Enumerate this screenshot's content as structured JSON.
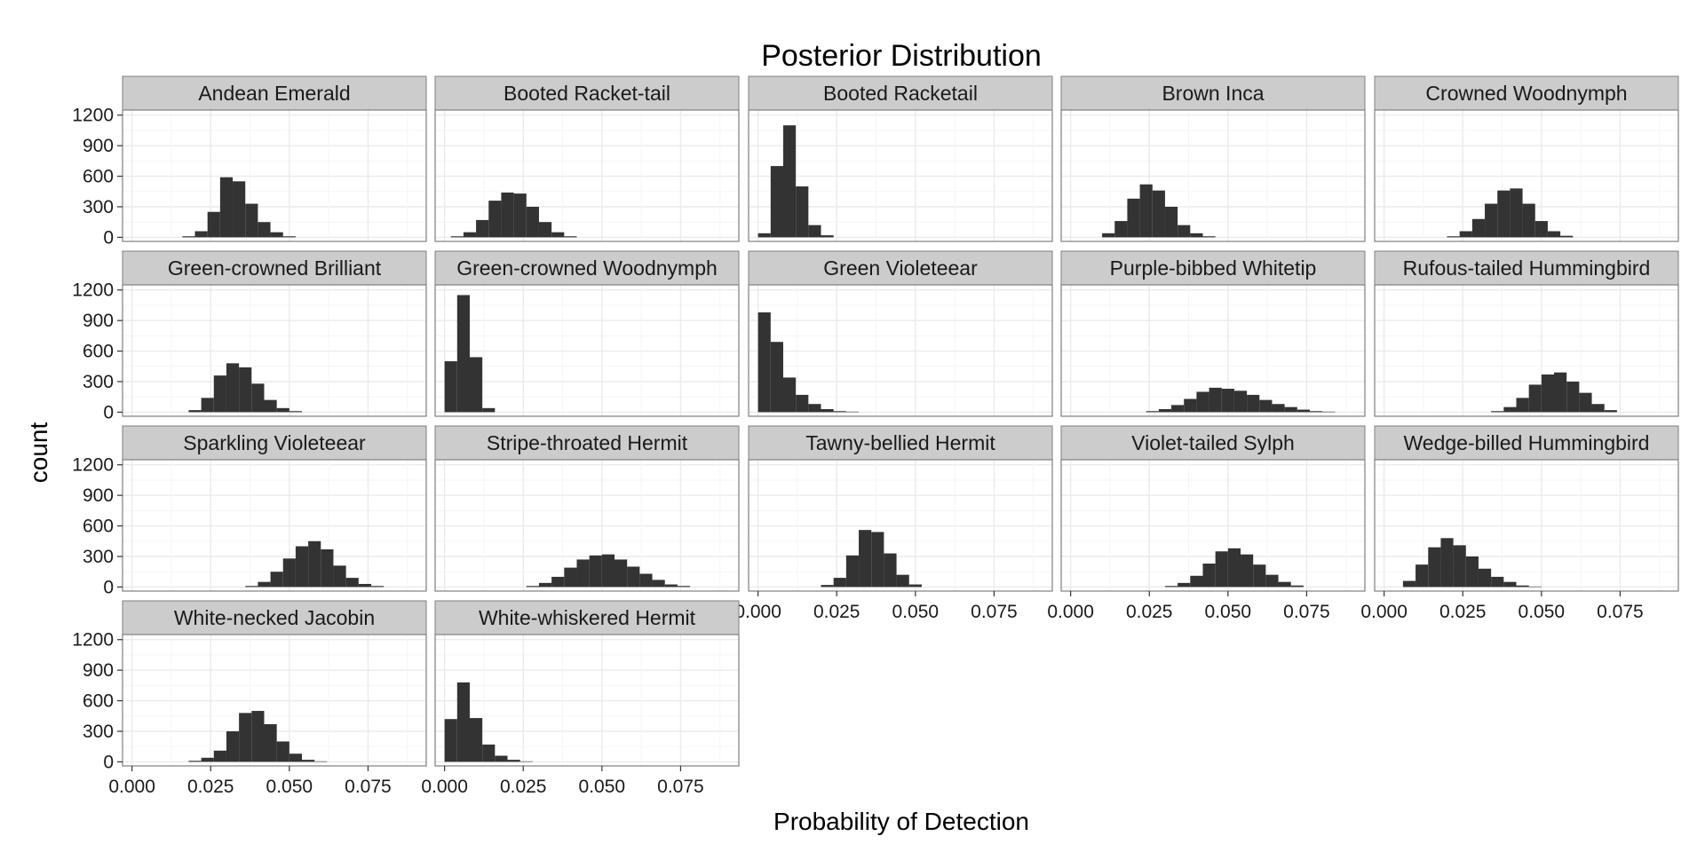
{
  "chart_data": {
    "type": "histogram",
    "title": "Posterior Distribution",
    "xlabel": "Probability of Detection",
    "ylabel": "count",
    "x_ticks": [
      "0.000",
      "0.025",
      "0.050",
      "0.075"
    ],
    "y_ticks": [
      "0",
      "300",
      "600",
      "900",
      "1200"
    ],
    "xlim": [
      -0.003,
      0.0935
    ],
    "ylim": [
      -40,
      1250
    ],
    "bin_width": 0.004,
    "grid": true,
    "colors": {
      "bar": "#333333",
      "strip": "#cccccc",
      "panel_border": "#7f7f7f",
      "grid": "#ebebeb"
    },
    "panels": [
      {
        "name": "Andean Emerald",
        "bins": [
          {
            "x": 0.016,
            "y": 10
          },
          {
            "x": 0.02,
            "y": 60
          },
          {
            "x": 0.024,
            "y": 250
          },
          {
            "x": 0.028,
            "y": 590
          },
          {
            "x": 0.032,
            "y": 550
          },
          {
            "x": 0.036,
            "y": 330
          },
          {
            "x": 0.04,
            "y": 150
          },
          {
            "x": 0.044,
            "y": 50
          },
          {
            "x": 0.048,
            "y": 10
          }
        ]
      },
      {
        "name": "Booted Racket-tail",
        "bins": [
          {
            "x": 0.002,
            "y": 10
          },
          {
            "x": 0.006,
            "y": 50
          },
          {
            "x": 0.01,
            "y": 170
          },
          {
            "x": 0.014,
            "y": 360
          },
          {
            "x": 0.018,
            "y": 440
          },
          {
            "x": 0.022,
            "y": 430
          },
          {
            "x": 0.026,
            "y": 300
          },
          {
            "x": 0.03,
            "y": 150
          },
          {
            "x": 0.034,
            "y": 50
          },
          {
            "x": 0.038,
            "y": 10
          }
        ]
      },
      {
        "name": "Booted Racketail",
        "bins": [
          {
            "x": 0.0,
            "y": 40
          },
          {
            "x": 0.004,
            "y": 700
          },
          {
            "x": 0.008,
            "y": 1100
          },
          {
            "x": 0.012,
            "y": 500
          },
          {
            "x": 0.016,
            "y": 120
          },
          {
            "x": 0.02,
            "y": 20
          }
        ]
      },
      {
        "name": "Brown Inca",
        "bins": [
          {
            "x": 0.01,
            "y": 40
          },
          {
            "x": 0.014,
            "y": 160
          },
          {
            "x": 0.018,
            "y": 380
          },
          {
            "x": 0.022,
            "y": 520
          },
          {
            "x": 0.026,
            "y": 460
          },
          {
            "x": 0.03,
            "y": 300
          },
          {
            "x": 0.034,
            "y": 120
          },
          {
            "x": 0.038,
            "y": 40
          },
          {
            "x": 0.042,
            "y": 10
          }
        ]
      },
      {
        "name": "Crowned Woodnymph",
        "bins": [
          {
            "x": 0.02,
            "y": 10
          },
          {
            "x": 0.024,
            "y": 60
          },
          {
            "x": 0.028,
            "y": 180
          },
          {
            "x": 0.032,
            "y": 330
          },
          {
            "x": 0.036,
            "y": 460
          },
          {
            "x": 0.04,
            "y": 480
          },
          {
            "x": 0.044,
            "y": 330
          },
          {
            "x": 0.048,
            "y": 160
          },
          {
            "x": 0.052,
            "y": 60
          },
          {
            "x": 0.056,
            "y": 15
          }
        ]
      },
      {
        "name": "Green-crowned Brilliant",
        "bins": [
          {
            "x": 0.018,
            "y": 20
          },
          {
            "x": 0.022,
            "y": 140
          },
          {
            "x": 0.026,
            "y": 360
          },
          {
            "x": 0.03,
            "y": 480
          },
          {
            "x": 0.034,
            "y": 440
          },
          {
            "x": 0.038,
            "y": 280
          },
          {
            "x": 0.042,
            "y": 120
          },
          {
            "x": 0.046,
            "y": 40
          },
          {
            "x": 0.05,
            "y": 10
          }
        ]
      },
      {
        "name": "Green-crowned Woodnymph",
        "bins": [
          {
            "x": 0.0,
            "y": 500
          },
          {
            "x": 0.004,
            "y": 1150
          },
          {
            "x": 0.008,
            "y": 540
          },
          {
            "x": 0.012,
            "y": 40
          }
        ]
      },
      {
        "name": "Green Violeteear",
        "bins": [
          {
            "x": 0.0,
            "y": 980
          },
          {
            "x": 0.004,
            "y": 690
          },
          {
            "x": 0.008,
            "y": 340
          },
          {
            "x": 0.012,
            "y": 170
          },
          {
            "x": 0.016,
            "y": 80
          },
          {
            "x": 0.02,
            "y": 30
          },
          {
            "x": 0.024,
            "y": 10
          },
          {
            "x": 0.028,
            "y": 5
          }
        ]
      },
      {
        "name": "Purple-bibbed Whitetip",
        "bins": [
          {
            "x": 0.024,
            "y": 10
          },
          {
            "x": 0.028,
            "y": 30
          },
          {
            "x": 0.032,
            "y": 70
          },
          {
            "x": 0.036,
            "y": 130
          },
          {
            "x": 0.04,
            "y": 200
          },
          {
            "x": 0.044,
            "y": 240
          },
          {
            "x": 0.048,
            "y": 230
          },
          {
            "x": 0.052,
            "y": 210
          },
          {
            "x": 0.056,
            "y": 170
          },
          {
            "x": 0.06,
            "y": 120
          },
          {
            "x": 0.064,
            "y": 80
          },
          {
            "x": 0.068,
            "y": 50
          },
          {
            "x": 0.072,
            "y": 25
          },
          {
            "x": 0.076,
            "y": 10
          },
          {
            "x": 0.08,
            "y": 5
          }
        ]
      },
      {
        "name": "Rufous-tailed Hummingbird",
        "bins": [
          {
            "x": 0.034,
            "y": 10
          },
          {
            "x": 0.038,
            "y": 50
          },
          {
            "x": 0.042,
            "y": 140
          },
          {
            "x": 0.046,
            "y": 270
          },
          {
            "x": 0.05,
            "y": 370
          },
          {
            "x": 0.054,
            "y": 390
          },
          {
            "x": 0.058,
            "y": 300
          },
          {
            "x": 0.062,
            "y": 190
          },
          {
            "x": 0.066,
            "y": 80
          },
          {
            "x": 0.07,
            "y": 20
          }
        ]
      },
      {
        "name": "Sparkling Violeteear",
        "bins": [
          {
            "x": 0.036,
            "y": 10
          },
          {
            "x": 0.04,
            "y": 50
          },
          {
            "x": 0.044,
            "y": 150
          },
          {
            "x": 0.048,
            "y": 280
          },
          {
            "x": 0.052,
            "y": 400
          },
          {
            "x": 0.056,
            "y": 450
          },
          {
            "x": 0.06,
            "y": 370
          },
          {
            "x": 0.064,
            "y": 210
          },
          {
            "x": 0.068,
            "y": 90
          },
          {
            "x": 0.072,
            "y": 30
          },
          {
            "x": 0.076,
            "y": 10
          }
        ]
      },
      {
        "name": "Stripe-throated Hermit",
        "bins": [
          {
            "x": 0.026,
            "y": 10
          },
          {
            "x": 0.03,
            "y": 40
          },
          {
            "x": 0.034,
            "y": 100
          },
          {
            "x": 0.038,
            "y": 190
          },
          {
            "x": 0.042,
            "y": 270
          },
          {
            "x": 0.046,
            "y": 310
          },
          {
            "x": 0.05,
            "y": 320
          },
          {
            "x": 0.054,
            "y": 270
          },
          {
            "x": 0.058,
            "y": 200
          },
          {
            "x": 0.062,
            "y": 130
          },
          {
            "x": 0.066,
            "y": 70
          },
          {
            "x": 0.07,
            "y": 25
          },
          {
            "x": 0.074,
            "y": 10
          }
        ]
      },
      {
        "name": "Tawny-bellied Hermit",
        "bins": [
          {
            "x": 0.02,
            "y": 20
          },
          {
            "x": 0.024,
            "y": 90
          },
          {
            "x": 0.028,
            "y": 310
          },
          {
            "x": 0.032,
            "y": 560
          },
          {
            "x": 0.036,
            "y": 540
          },
          {
            "x": 0.04,
            "y": 330
          },
          {
            "x": 0.044,
            "y": 120
          },
          {
            "x": 0.048,
            "y": 25
          }
        ]
      },
      {
        "name": "Violet-tailed Sylph",
        "bins": [
          {
            "x": 0.03,
            "y": 10
          },
          {
            "x": 0.034,
            "y": 40
          },
          {
            "x": 0.038,
            "y": 110
          },
          {
            "x": 0.042,
            "y": 230
          },
          {
            "x": 0.046,
            "y": 350
          },
          {
            "x": 0.05,
            "y": 380
          },
          {
            "x": 0.054,
            "y": 320
          },
          {
            "x": 0.058,
            "y": 220
          },
          {
            "x": 0.062,
            "y": 120
          },
          {
            "x": 0.066,
            "y": 50
          },
          {
            "x": 0.07,
            "y": 15
          }
        ]
      },
      {
        "name": "Wedge-billed Hummingbird",
        "bins": [
          {
            "x": 0.006,
            "y": 60
          },
          {
            "x": 0.01,
            "y": 220
          },
          {
            "x": 0.014,
            "y": 390
          },
          {
            "x": 0.018,
            "y": 480
          },
          {
            "x": 0.022,
            "y": 410
          },
          {
            "x": 0.026,
            "y": 300
          },
          {
            "x": 0.03,
            "y": 180
          },
          {
            "x": 0.034,
            "y": 100
          },
          {
            "x": 0.038,
            "y": 50
          },
          {
            "x": 0.042,
            "y": 15
          },
          {
            "x": 0.046,
            "y": 5
          }
        ]
      },
      {
        "name": "White-necked Jacobin",
        "bins": [
          {
            "x": 0.018,
            "y": 10
          },
          {
            "x": 0.022,
            "y": 40
          },
          {
            "x": 0.026,
            "y": 110
          },
          {
            "x": 0.03,
            "y": 300
          },
          {
            "x": 0.034,
            "y": 480
          },
          {
            "x": 0.038,
            "y": 500
          },
          {
            "x": 0.042,
            "y": 370
          },
          {
            "x": 0.046,
            "y": 200
          },
          {
            "x": 0.05,
            "y": 80
          },
          {
            "x": 0.054,
            "y": 20
          },
          {
            "x": 0.058,
            "y": 5
          }
        ]
      },
      {
        "name": "White-whiskered Hermit",
        "bins": [
          {
            "x": 0.0,
            "y": 420
          },
          {
            "x": 0.004,
            "y": 780
          },
          {
            "x": 0.008,
            "y": 430
          },
          {
            "x": 0.012,
            "y": 170
          },
          {
            "x": 0.016,
            "y": 60
          },
          {
            "x": 0.02,
            "y": 20
          },
          {
            "x": 0.024,
            "y": 5
          }
        ]
      }
    ]
  }
}
